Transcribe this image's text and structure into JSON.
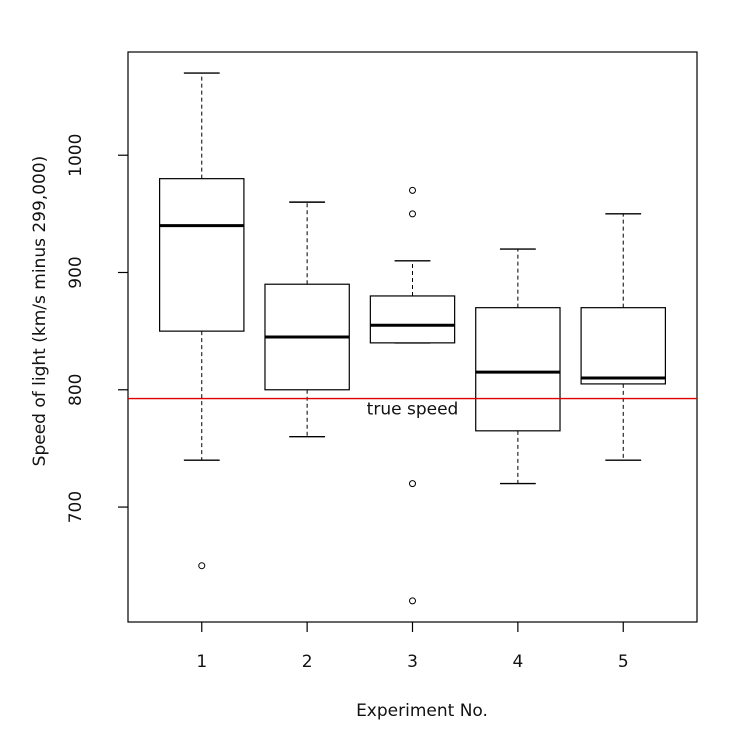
{
  "chart_data": {
    "type": "boxplot",
    "xlabel": "Experiment No.",
    "ylabel": "Speed of light (km/s minus 299,000)",
    "categories": [
      "1",
      "2",
      "3",
      "4",
      "5"
    ],
    "boxes": [
      {
        "whislo": 740,
        "q1": 850,
        "med": 940,
        "q3": 980,
        "whishi": 1070,
        "fliers": [
          650
        ]
      },
      {
        "whislo": 760,
        "q1": 800,
        "med": 845,
        "q3": 890,
        "whishi": 960,
        "fliers": []
      },
      {
        "whislo": 840,
        "q1": 840,
        "med": 855,
        "q3": 880,
        "whishi": 910,
        "fliers": [
          970,
          950,
          720,
          620
        ]
      },
      {
        "whislo": 720,
        "q1": 765,
        "med": 815,
        "q3": 870,
        "whishi": 920,
        "fliers": []
      },
      {
        "whislo": 740,
        "q1": 805,
        "med": 810,
        "q3": 870,
        "whishi": 950,
        "fliers": []
      }
    ],
    "reference_line": {
      "value": 792.5,
      "color": "#dd0000",
      "label": "true speed"
    },
    "ylim": [
      602,
      1088
    ],
    "yticks": [
      700,
      800,
      900,
      1000
    ]
  }
}
